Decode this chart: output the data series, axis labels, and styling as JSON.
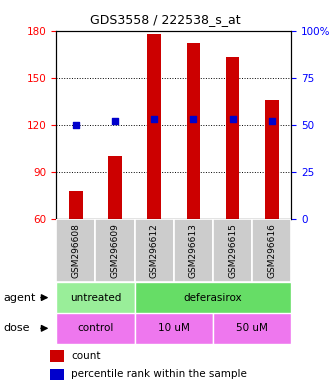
{
  "title": "GDS3558 / 222538_s_at",
  "samples": [
    "GSM296608",
    "GSM296609",
    "GSM296612",
    "GSM296613",
    "GSM296615",
    "GSM296616"
  ],
  "bar_values": [
    78,
    100,
    178,
    172,
    163,
    136
  ],
  "percentile_values": [
    50,
    52,
    53,
    53,
    53,
    52
  ],
  "bar_color": "#cc0000",
  "percentile_color": "#0000cc",
  "ylim_left": [
    60,
    180
  ],
  "ylim_right": [
    0,
    100
  ],
  "yticks_left": [
    60,
    90,
    120,
    150,
    180
  ],
  "yticks_right": [
    0,
    25,
    50,
    75,
    100
  ],
  "agent_untreated_color": "#99ee99",
  "agent_deferasirox_color": "#66dd66",
  "dose_color": "#ee77ee",
  "sample_box_color": "#cccccc",
  "bg_color": "#ffffff",
  "bar_width": 0.35
}
